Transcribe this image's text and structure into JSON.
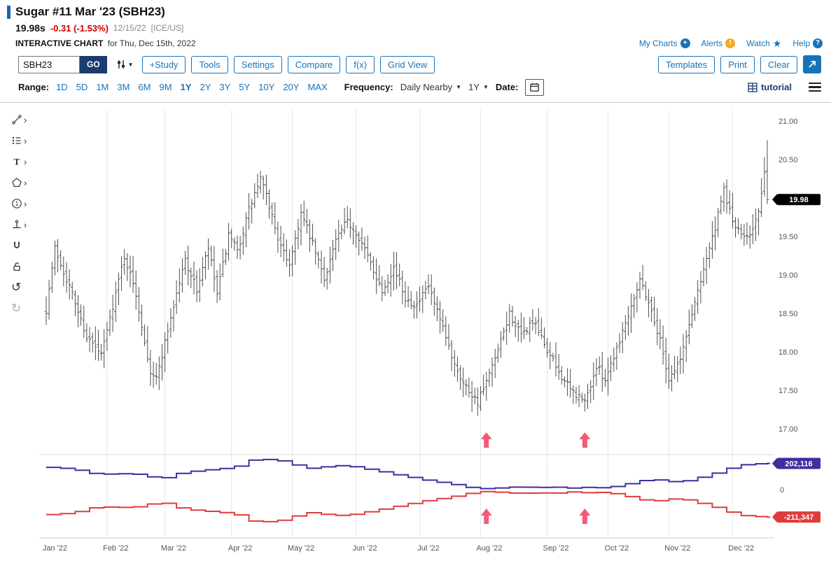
{
  "header": {
    "title": "Sugar #11 Mar '23 (SBH23)",
    "price": "19.98s",
    "change": "-0.31 (-1.53%)",
    "date": "12/15/22",
    "exchange": "[ICE/US]",
    "subtitle_bold": "INTERACTIVE CHART",
    "subtitle_rest": "for Thu, Dec 15th, 2022",
    "links": [
      {
        "label": "My Charts",
        "icon": "plus-circle-icon"
      },
      {
        "label": "Alerts",
        "icon": "alert-circle-icon"
      },
      {
        "label": "Watch",
        "icon": "star-icon"
      },
      {
        "label": "Help",
        "icon": "help-circle-icon"
      }
    ]
  },
  "toolbar": {
    "symbol_value": "SBH23",
    "go_label": "GO",
    "buttons": [
      "+Study",
      "Tools",
      "Settings",
      "Compare",
      "f(x)",
      "Grid View"
    ],
    "right_buttons": [
      "Templates",
      "Print",
      "Clear"
    ]
  },
  "range_bar": {
    "label": "Range:",
    "ranges": [
      "1D",
      "5D",
      "1M",
      "3M",
      "6M",
      "9M",
      "1Y",
      "2Y",
      "3Y",
      "5Y",
      "10Y",
      "20Y",
      "MAX"
    ],
    "selected": "1Y",
    "frequency_label": "Frequency:",
    "frequency_value": "Daily Nearby",
    "period_value": "1Y",
    "date_label": "Date:",
    "tutorial_label": "tutorial"
  },
  "sidebar": {
    "tools": [
      {
        "name": "trendline-tool",
        "expandable": true
      },
      {
        "name": "annotation-tool",
        "expandable": true
      },
      {
        "name": "text-tool",
        "expandable": true
      },
      {
        "name": "shapes-tool",
        "expandable": true
      },
      {
        "name": "number-marker-tool",
        "expandable": true
      },
      {
        "name": "levels-tool",
        "expandable": true
      },
      {
        "name": "magnet-tool",
        "expandable": false
      },
      {
        "name": "unlock-tool",
        "expandable": false
      },
      {
        "name": "undo-button",
        "expandable": false
      },
      {
        "name": "redo-button",
        "expandable": false,
        "disabled": true
      }
    ]
  },
  "chart": {
    "y_ticks": [
      "21.00",
      "20.50",
      "20.00",
      "19.50",
      "19.00",
      "18.50",
      "18.00",
      "17.50",
      "17.00"
    ],
    "x_labels": [
      "Jan '22",
      "Feb '22",
      "Mar '22",
      "Apr '22",
      "May '22",
      "Jun '22",
      "Jul '22",
      "Aug '22",
      "Sep '22",
      "Oct '22",
      "Nov '22",
      "Dec '22"
    ],
    "last_price_label": "19.98",
    "indicator": {
      "upper_label": "202,116",
      "zero_label": "0",
      "lower_label": "-211,347"
    }
  },
  "chart_data": {
    "type": "ohlc",
    "title": "Sugar #11 Mar '23 (SBH23) — Daily Nearby, 1Y",
    "y_axis": {
      "ticks": [
        21.0,
        20.5,
        20.0,
        19.5,
        19.0,
        18.5,
        18.0,
        17.5,
        17.0
      ],
      "range": [
        16.85,
        21.15
      ]
    },
    "trading_days": 250,
    "month_start_days": [
      0,
      21,
      41,
      64,
      85,
      107,
      129,
      150,
      173,
      194,
      215,
      237
    ],
    "price_anchors": [
      [
        0,
        18.55
      ],
      [
        3,
        19.35
      ],
      [
        8,
        18.85
      ],
      [
        14,
        18.2
      ],
      [
        19,
        17.95
      ],
      [
        23,
        18.6
      ],
      [
        27,
        19.25
      ],
      [
        31,
        18.75
      ],
      [
        36,
        17.75
      ],
      [
        38,
        17.65
      ],
      [
        43,
        18.45
      ],
      [
        48,
        19.2
      ],
      [
        52,
        18.8
      ],
      [
        56,
        19.35
      ],
      [
        59,
        18.75
      ],
      [
        63,
        19.5
      ],
      [
        66,
        19.3
      ],
      [
        70,
        19.85
      ],
      [
        74,
        20.25
      ],
      [
        77,
        19.9
      ],
      [
        81,
        19.35
      ],
      [
        84,
        19.15
      ],
      [
        88,
        19.8
      ],
      [
        92,
        19.4
      ],
      [
        96,
        18.95
      ],
      [
        100,
        19.45
      ],
      [
        104,
        19.7
      ],
      [
        108,
        19.5
      ],
      [
        112,
        19.15
      ],
      [
        116,
        18.8
      ],
      [
        120,
        19.1
      ],
      [
        124,
        18.7
      ],
      [
        128,
        18.6
      ],
      [
        132,
        18.85
      ],
      [
        136,
        18.4
      ],
      [
        140,
        17.95
      ],
      [
        144,
        17.6
      ],
      [
        149,
        17.35
      ],
      [
        152,
        17.6
      ],
      [
        156,
        18.0
      ],
      [
        160,
        18.5
      ],
      [
        164,
        18.2
      ],
      [
        168,
        18.4
      ],
      [
        172,
        18.1
      ],
      [
        176,
        17.8
      ],
      [
        181,
        17.5
      ],
      [
        186,
        17.35
      ],
      [
        190,
        17.8
      ],
      [
        193,
        17.65
      ],
      [
        197,
        18.05
      ],
      [
        201,
        18.5
      ],
      [
        205,
        18.95
      ],
      [
        208,
        18.65
      ],
      [
        212,
        18.15
      ],
      [
        215,
        17.65
      ],
      [
        219,
        17.9
      ],
      [
        223,
        18.5
      ],
      [
        227,
        19.1
      ],
      [
        231,
        19.6
      ],
      [
        234,
        20.1
      ],
      [
        237,
        19.7
      ],
      [
        240,
        19.5
      ],
      [
        243,
        19.55
      ],
      [
        246,
        19.8
      ],
      [
        248,
        20.29
      ],
      [
        249,
        19.98
      ]
    ],
    "last_bar": {
      "open": 20.35,
      "high": 20.75,
      "low": 19.92,
      "close": 19.98
    },
    "annotations": {
      "arrow_days": [
        152,
        186
      ],
      "color": "#f25b76"
    },
    "indicator": {
      "type": "step-line",
      "zero": 0,
      "series": [
        {
          "name": "net-position-long",
          "color": "#3d2f9f",
          "last_value": 202116,
          "anchors": [
            [
              0,
              172000
            ],
            [
              8,
              160000
            ],
            [
              15,
              125000
            ],
            [
              22,
              118000
            ],
            [
              28,
              128000
            ],
            [
              34,
              100000
            ],
            [
              40,
              92000
            ],
            [
              46,
              132000
            ],
            [
              52,
              148000
            ],
            [
              58,
              158000
            ],
            [
              64,
              172000
            ],
            [
              70,
              228000
            ],
            [
              78,
              235000
            ],
            [
              84,
              195000
            ],
            [
              90,
              165000
            ],
            [
              96,
              178000
            ],
            [
              102,
              188000
            ],
            [
              108,
              165000
            ],
            [
              114,
              142000
            ],
            [
              120,
              115000
            ],
            [
              126,
              90000
            ],
            [
              132,
              65000
            ],
            [
              138,
              48000
            ],
            [
              144,
              20000
            ],
            [
              150,
              8000
            ],
            [
              156,
              14000
            ],
            [
              162,
              22000
            ],
            [
              168,
              16000
            ],
            [
              174,
              20000
            ],
            [
              180,
              12000
            ],
            [
              186,
              18000
            ],
            [
              192,
              14000
            ],
            [
              198,
              35000
            ],
            [
              203,
              62000
            ],
            [
              208,
              82000
            ],
            [
              213,
              65000
            ],
            [
              218,
              58000
            ],
            [
              223,
              85000
            ],
            [
              228,
              112000
            ],
            [
              233,
              150000
            ],
            [
              238,
              188000
            ],
            [
              243,
              198000
            ],
            [
              249,
              202116
            ]
          ]
        },
        {
          "name": "net-position-short",
          "color": "#e03b3b",
          "last_value": -211347,
          "anchors": [
            [
              0,
              -192000
            ],
            [
              8,
              -180000
            ],
            [
              15,
              -140000
            ],
            [
              22,
              -132000
            ],
            [
              28,
              -142000
            ],
            [
              34,
              -112000
            ],
            [
              40,
              -105000
            ],
            [
              46,
              -148000
            ],
            [
              52,
              -162000
            ],
            [
              58,
              -172000
            ],
            [
              64,
              -185000
            ],
            [
              70,
              -242000
            ],
            [
              78,
              -250000
            ],
            [
              84,
              -208000
            ],
            [
              90,
              -178000
            ],
            [
              96,
              -192000
            ],
            [
              102,
              -202000
            ],
            [
              108,
              -178000
            ],
            [
              114,
              -155000
            ],
            [
              120,
              -128000
            ],
            [
              126,
              -102000
            ],
            [
              132,
              -78000
            ],
            [
              138,
              -60000
            ],
            [
              144,
              -32000
            ],
            [
              150,
              -15000
            ],
            [
              156,
              -20000
            ],
            [
              162,
              -30000
            ],
            [
              168,
              -24000
            ],
            [
              174,
              -28000
            ],
            [
              180,
              -18000
            ],
            [
              186,
              -25000
            ],
            [
              192,
              -20000
            ],
            [
              198,
              -42000
            ],
            [
              203,
              -70000
            ],
            [
              208,
              -92000
            ],
            [
              213,
              -75000
            ],
            [
              218,
              -68000
            ],
            [
              223,
              -95000
            ],
            [
              228,
              -122000
            ],
            [
              233,
              -158000
            ],
            [
              238,
              -196000
            ],
            [
              243,
              -206000
            ],
            [
              249,
              -211347
            ]
          ]
        }
      ]
    }
  }
}
